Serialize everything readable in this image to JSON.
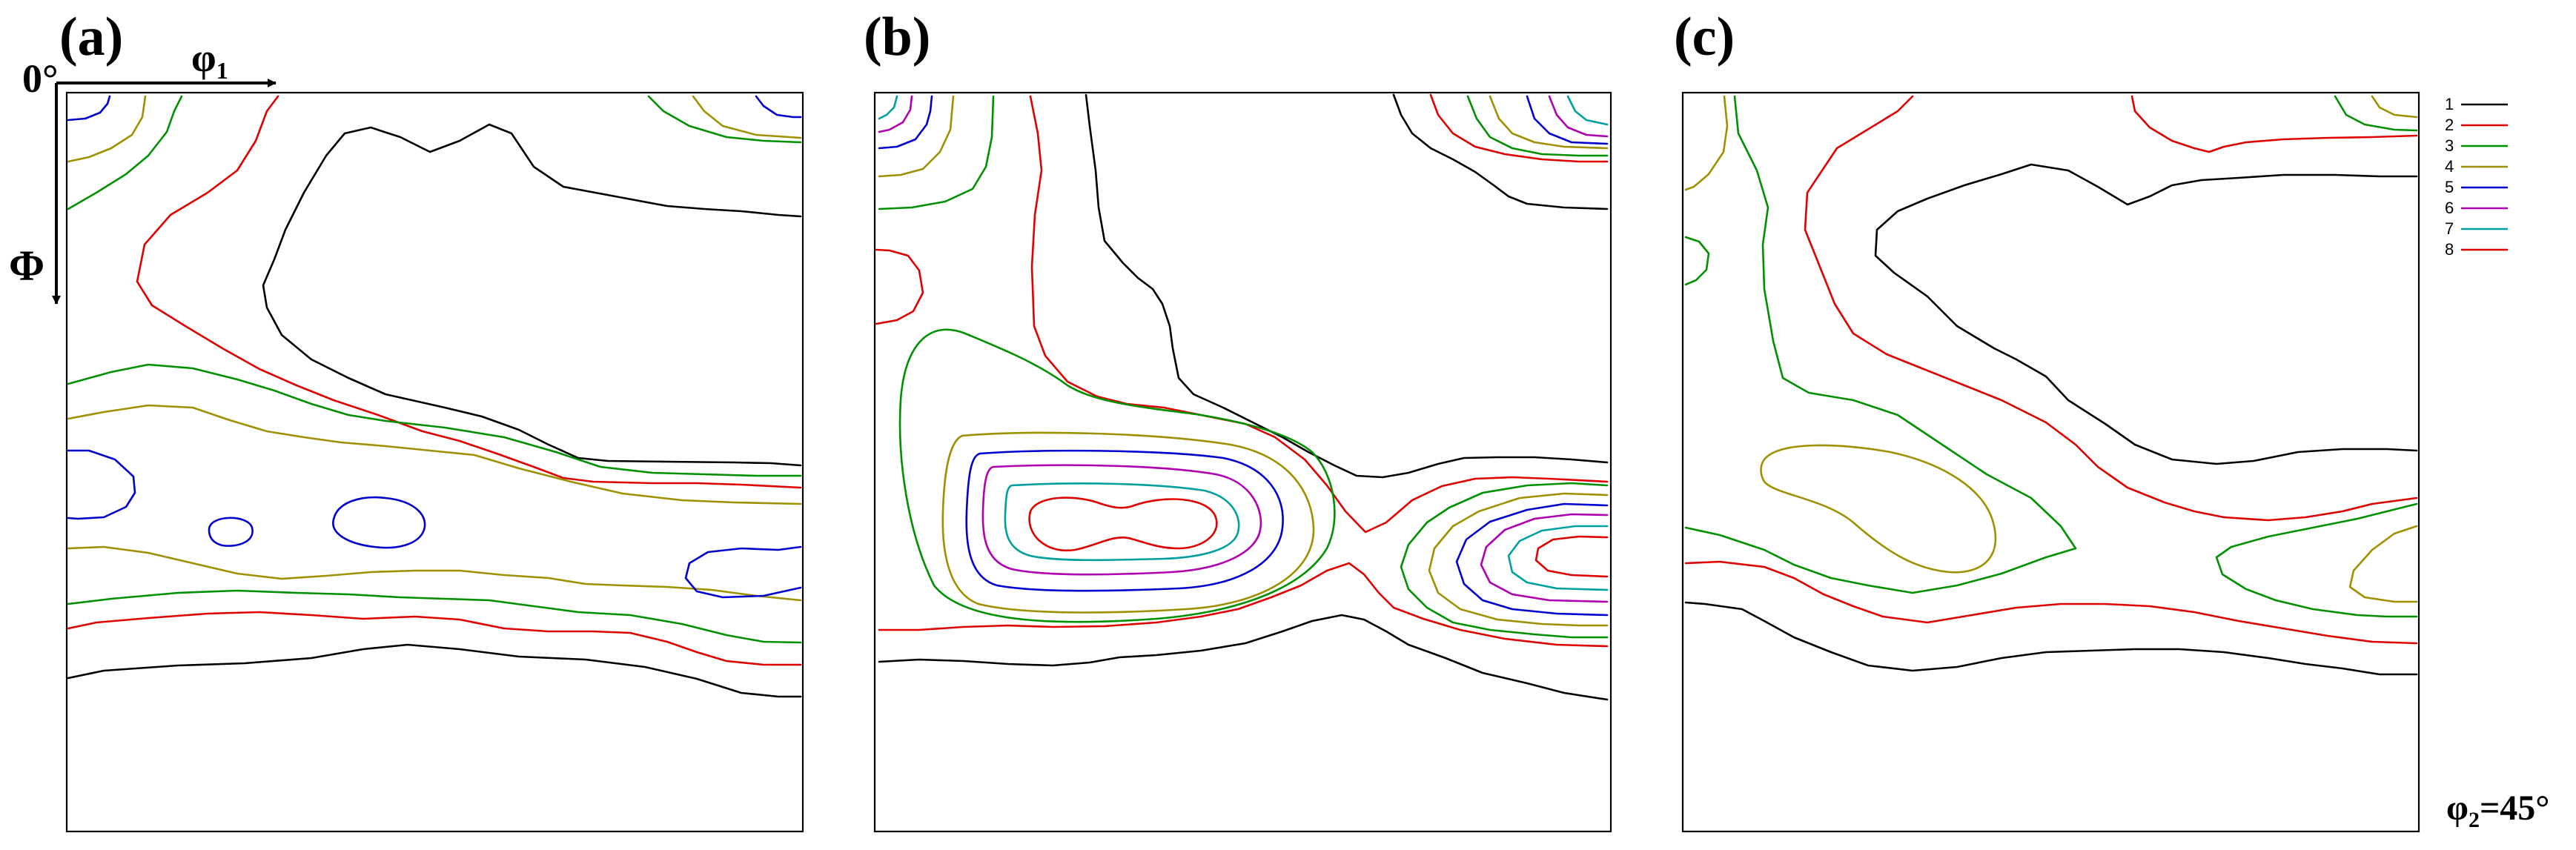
{
  "panels": [
    {
      "label": "(a)"
    },
    {
      "label": "(b)"
    },
    {
      "label": "(c)"
    }
  ],
  "axes": {
    "origin": "0°",
    "x_label_main": "φ",
    "x_label_sub": "1",
    "y_label": "Φ"
  },
  "section": {
    "label_main": "φ",
    "label_sub": "2",
    "label_value": "=45°"
  },
  "legend": {
    "levels": [
      {
        "label": "1",
        "color": "#000000"
      },
      {
        "label": "2",
        "color": "#e00000"
      },
      {
        "label": "3",
        "color": "#009000"
      },
      {
        "label": "4",
        "color": "#a09000"
      },
      {
        "label": "5",
        "color": "#0000d0"
      },
      {
        "label": "6",
        "color": "#b000b0"
      },
      {
        "label": "7",
        "color": "#00a0a0"
      },
      {
        "label": "8",
        "color": "#e00000"
      }
    ]
  }
}
